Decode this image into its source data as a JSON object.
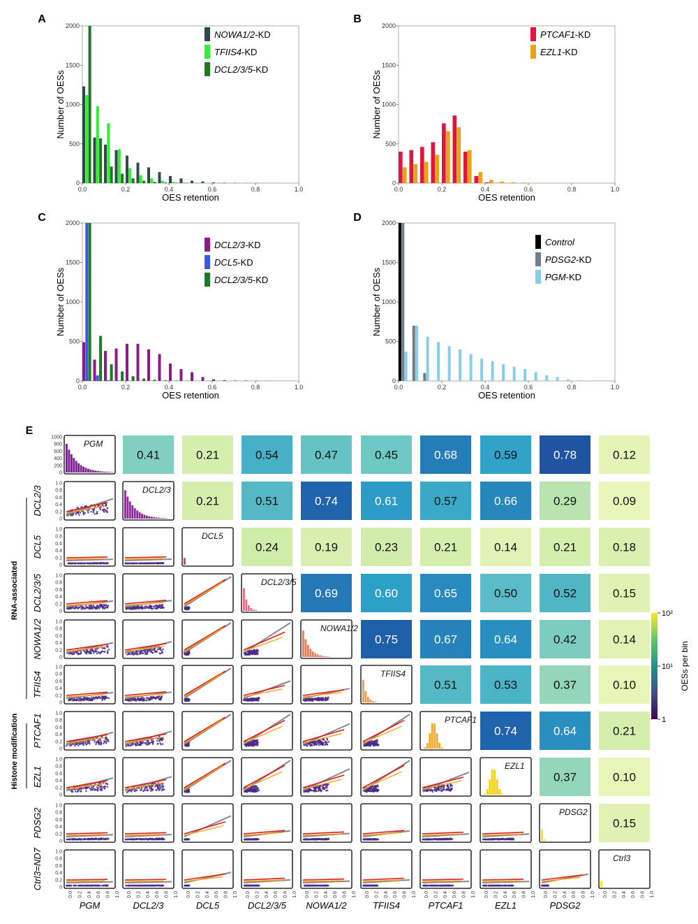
{
  "panels": [
    {
      "letter": "A",
      "ylabel": "Number of OESs",
      "xlabel": "OES retention"
    },
    {
      "letter": "B",
      "ylabel": "Number of OESs",
      "xlabel": "OES retention"
    },
    {
      "letter": "C",
      "ylabel": "Number of OESs",
      "xlabel": "OES retention"
    },
    {
      "letter": "D",
      "ylabel": "Number of OESs",
      "xlabel": "OES retention"
    },
    {
      "letter": "E"
    }
  ],
  "matrix": {
    "row_labels": [
      "DCL2/3",
      "DCL5",
      "DCL2/3/5",
      "NOWA1/2",
      "TFIIS4",
      "PTCAF1",
      "EZL1",
      "PDSG2",
      "Ctrl3=ND7"
    ],
    "col_labels": [
      "PGM",
      "DCL2/3",
      "DCL5",
      "DCL2/3/5",
      "NOWA1/2",
      "TFIIS4",
      "PTCAF1",
      "EZL1",
      "PDSG2"
    ],
    "diag_labels": [
      "PGM",
      "DCL2/3",
      "DCL5",
      "DCL2/3/5",
      "NOWA1/2",
      "TFIIS4",
      "PTCAF1",
      "EZL1",
      "PDSG2",
      "Ctrl3"
    ],
    "group_labels": [
      "RNA-associated",
      "Histone modification"
    ],
    "first_hist_yticks": [
      "1000",
      "800",
      "600",
      "400",
      "200",
      "0"
    ],
    "scatter_yticks": [
      "1.0",
      "0.8",
      "0.6",
      "0.4",
      "0.2",
      "0"
    ],
    "scatter_xticks": [
      "0.0",
      "0.2",
      "0.4",
      "0.6",
      "0.8",
      "1.0"
    ],
    "colorbar": {
      "label": "OESs per bin",
      "ticks": [
        "1",
        "10¹",
        "10²"
      ],
      "colors": [
        "#440154",
        "#3b528b",
        "#21918c",
        "#5ec962",
        "#fde725"
      ]
    },
    "correlations": [
      [
        "0.41",
        "0.21",
        "0.54",
        "0.47",
        "0.45",
        "0.68",
        "0.59",
        "0.78",
        "0.12"
      ],
      [
        "0.21",
        "0.51",
        "0.74",
        "0.61",
        "0.57",
        "0.66",
        "0.29",
        "0.09"
      ],
      [
        "0.24",
        "0.19",
        "0.23",
        "0.21",
        "0.14",
        "0.21",
        "0.18"
      ],
      [
        "0.69",
        "0.60",
        "0.65",
        "0.50",
        "0.52",
        "0.15"
      ],
      [
        "0.75",
        "0.67",
        "0.64",
        "0.42",
        "0.14"
      ],
      [
        "0.51",
        "0.53",
        "0.37",
        "0.10"
      ],
      [
        "0.74",
        "0.64",
        "0.21"
      ],
      [
        "0.37",
        "0.10"
      ],
      [
        "0.15"
      ]
    ],
    "diag_colors": [
      "#7a1f8f",
      "#8e2a9c",
      "#d8308c",
      "#e66d88",
      "#ee7a5c",
      "#f39b4c",
      "#f5aa2a",
      "#f6d20c",
      "#f3e20c",
      "#f1e812"
    ]
  },
  "chart_data": [
    {
      "type": "bar",
      "title": "",
      "xlabel": "OES retention",
      "ylabel": "Number of OESs",
      "ylim": [
        0,
        2000
      ],
      "xlim": [
        0,
        1
      ],
      "x_ticks": [
        "0.0",
        "0.2",
        "0.4",
        "0.6",
        "0.8",
        "1.0"
      ],
      "y_ticks": [
        "0",
        "500",
        "1000",
        "1500",
        "2000"
      ],
      "legend_position": "top-right",
      "x": [
        0.0,
        0.05,
        0.1,
        0.15,
        0.2,
        0.25,
        0.3,
        0.35,
        0.4,
        0.45,
        0.5,
        0.55,
        0.6,
        0.65,
        0.7,
        0.75,
        0.8,
        0.85,
        0.9,
        0.95
      ],
      "series": [
        {
          "name": "NOWA1/2",
          "name_suffix": "-KD",
          "color": "#2f4a4f",
          "values": [
            1230,
            580,
            490,
            420,
            350,
            260,
            200,
            140,
            90,
            60,
            30,
            20,
            10,
            5,
            3,
            2,
            2,
            1,
            1,
            0
          ]
        },
        {
          "name": "TFIIS4",
          "name_suffix": "-KD",
          "color": "#33ee33",
          "values": [
            1120,
            980,
            760,
            430,
            190,
            100,
            60,
            30,
            15,
            8,
            5,
            3,
            2,
            1,
            1,
            0,
            0,
            0,
            0,
            0
          ]
        },
        {
          "name": "DCL2/3/5",
          "name_suffix": "-KD",
          "color": "#1e7a1e",
          "values": [
            2000,
            570,
            210,
            120,
            60,
            30,
            15,
            8,
            5,
            3,
            2,
            1,
            1,
            0,
            0,
            0,
            0,
            0,
            0,
            0
          ]
        }
      ]
    },
    {
      "type": "bar",
      "title": "",
      "xlabel": "OES retention",
      "ylabel": "Number of OESs",
      "ylim": [
        0,
        2000
      ],
      "xlim": [
        0,
        1
      ],
      "x_ticks": [
        "0.0",
        "0.2",
        "0.4",
        "0.6",
        "0.8",
        "1.0"
      ],
      "y_ticks": [
        "0",
        "500",
        "1000",
        "1500",
        "2000"
      ],
      "legend_position": "top-right",
      "x": [
        0.0,
        0.05,
        0.1,
        0.15,
        0.2,
        0.25,
        0.3,
        0.35,
        0.4,
        0.45,
        0.5,
        0.55,
        0.6,
        0.65,
        0.7,
        0.75,
        0.8,
        0.85,
        0.9,
        0.95
      ],
      "series": [
        {
          "name": "PTCAF1",
          "name_suffix": "-KD",
          "color": "#e0173c",
          "values": [
            400,
            420,
            460,
            520,
            760,
            860,
            400,
            90,
            10,
            2,
            1,
            0,
            0,
            0,
            0,
            0,
            0,
            0,
            0,
            0
          ]
        },
        {
          "name": "EZL1",
          "name_suffix": "-KD",
          "color": "#e8a317",
          "values": [
            200,
            240,
            270,
            360,
            660,
            710,
            420,
            140,
            40,
            20,
            10,
            8,
            5,
            3,
            1,
            1,
            0,
            0,
            0,
            0
          ]
        }
      ]
    },
    {
      "type": "bar",
      "title": "",
      "xlabel": "OES retention",
      "ylabel": "Number of OESs",
      "ylim": [
        0,
        2000
      ],
      "xlim": [
        0,
        1
      ],
      "x_ticks": [
        "0.0",
        "0.2",
        "0.4",
        "0.6",
        "0.8",
        "1.0"
      ],
      "y_ticks": [
        "0",
        "500",
        "1000",
        "1500",
        "2000"
      ],
      "legend_position": "top-right",
      "x": [
        0.0,
        0.05,
        0.1,
        0.15,
        0.2,
        0.25,
        0.3,
        0.35,
        0.4,
        0.45,
        0.5,
        0.55,
        0.6,
        0.65,
        0.7,
        0.75,
        0.8,
        0.85,
        0.9,
        0.95
      ],
      "series": [
        {
          "name": "DCL2/3",
          "name_suffix": "-KD",
          "color": "#8b1a8b",
          "values": [
            490,
            270,
            380,
            410,
            470,
            470,
            400,
            340,
            220,
            150,
            110,
            50,
            20,
            10,
            5,
            5,
            3,
            1,
            0,
            0
          ]
        },
        {
          "name": "DCL5",
          "name_suffix": "-KD",
          "color": "#3a57e8",
          "values": [
            2000,
            70,
            10,
            5,
            3,
            2,
            1,
            1,
            0,
            0,
            0,
            0,
            0,
            0,
            0,
            0,
            0,
            0,
            0,
            0
          ]
        },
        {
          "name": "DCL2/3/5",
          "name_suffix": "-KD",
          "color": "#1e7a1e",
          "values": [
            2000,
            570,
            210,
            120,
            60,
            30,
            15,
            8,
            5,
            3,
            2,
            1,
            1,
            0,
            0,
            0,
            0,
            0,
            0,
            0
          ]
        }
      ]
    },
    {
      "type": "bar",
      "title": "",
      "xlabel": "OES retention",
      "ylabel": "Number of OESs",
      "ylim": [
        0,
        2000
      ],
      "xlim": [
        0,
        1
      ],
      "x_ticks": [
        "0.0",
        "0.2",
        "0.4",
        "0.6",
        "0.8",
        "1.0"
      ],
      "y_ticks": [
        "0",
        "500",
        "1000",
        "1500",
        "2000"
      ],
      "legend_position": "top-right",
      "x": [
        0.0,
        0.05,
        0.1,
        0.15,
        0.2,
        0.25,
        0.3,
        0.35,
        0.4,
        0.45,
        0.5,
        0.55,
        0.6,
        0.65,
        0.7,
        0.75,
        0.8,
        0.85,
        0.9,
        0.95
      ],
      "series": [
        {
          "name": "Control",
          "name_suffix": "",
          "color": "#000000",
          "values": [
            2000,
            0,
            0,
            0,
            0,
            0,
            0,
            0,
            0,
            0,
            0,
            0,
            0,
            0,
            0,
            0,
            0,
            0,
            0,
            0
          ]
        },
        {
          "name": "PDSG2",
          "name_suffix": "-KD",
          "color": "#6e7f8c",
          "values": [
            2000,
            700,
            100,
            0,
            0,
            0,
            0,
            0,
            0,
            0,
            0,
            0,
            0,
            0,
            0,
            0,
            0,
            0,
            0,
            0
          ]
        },
        {
          "name": "PGM",
          "name_suffix": "-KD",
          "color": "#87ceeb",
          "values": [
            370,
            700,
            560,
            490,
            440,
            400,
            340,
            280,
            250,
            210,
            180,
            150,
            110,
            70,
            50,
            20,
            8,
            3,
            1,
            0
          ]
        }
      ]
    }
  ]
}
